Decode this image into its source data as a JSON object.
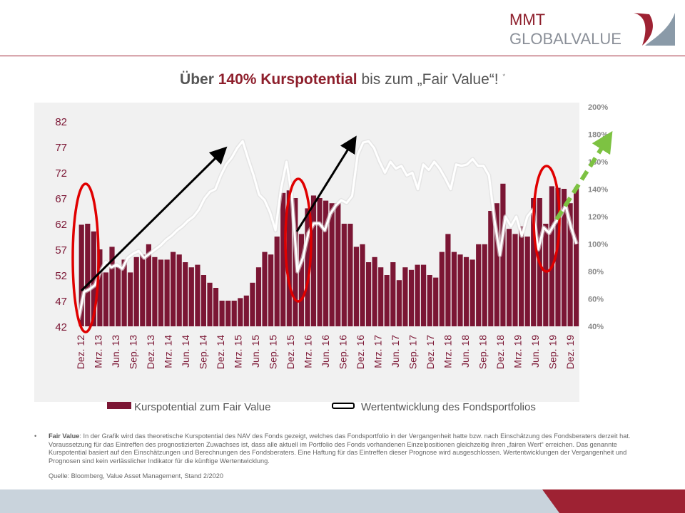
{
  "brand": {
    "line1": "MMT",
    "line2": "GLOBALVALUE"
  },
  "headline": {
    "part1": "Über ",
    "part2": "140% Kurspotential",
    "part3": " bis zum „Fair Value“!",
    "asterisk": "*"
  },
  "colors": {
    "bar": "#7b1634",
    "line": "#ffffff",
    "circle": "#e00000",
    "arrow": "#000000",
    "arrow_forecast": "#7dc242"
  },
  "chart_data": {
    "type": "bar",
    "left_axis": {
      "ticks": [
        "82",
        "77",
        "72",
        "67",
        "62",
        "57",
        "52",
        "47",
        "42"
      ],
      "min": 42,
      "max": 82
    },
    "right_axis": {
      "ticks": [
        "200%",
        "180%",
        "160%",
        "140%",
        "120%",
        "100%",
        "80%",
        "60%",
        "40%"
      ],
      "min": 40,
      "max": 200
    },
    "x_tick_labels": [
      "Dez. 12",
      "Mrz. 13",
      "Jun. 13",
      "Sep. 13",
      "Dez. 13",
      "Mrz. 14",
      "Jun. 14",
      "Sep. 14",
      "Dez. 14",
      "Mrz. 15",
      "Jun. 15",
      "Sep. 15",
      "Dez. 15",
      "Mrz. 16",
      "Jun. 16",
      "Sep. 16",
      "Dez. 16",
      "Mrz. 17",
      "Jun. 17",
      "Sep. 17",
      "Dez. 17",
      "Mrz. 18",
      "Jun. 18",
      "Sep. 18",
      "Dez. 18",
      "Mrz. 19",
      "Jun. 19",
      "Sep. 19",
      "Dez. 19"
    ],
    "series": [
      {
        "name": "Kurspotential zum Fair Value",
        "type": "bar",
        "axis": "left",
        "values": [
          61.8,
          62,
          60.5,
          57,
          52.5,
          57.5,
          53.5,
          55,
          52.5,
          55.5,
          56,
          58,
          55.5,
          55,
          55,
          56.5,
          56,
          54.5,
          53.5,
          54,
          52,
          50.5,
          49.5,
          47,
          47,
          47,
          47.5,
          48,
          50.5,
          53.5,
          56.5,
          56,
          59.5,
          68,
          68.5,
          67,
          60,
          65,
          67.5,
          67,
          66.5,
          66,
          66,
          62,
          62,
          57.5,
          58,
          54.5,
          55.5,
          53.5,
          52,
          54.5,
          51,
          53.5,
          53,
          54,
          54,
          52,
          51.5,
          56.5,
          60,
          56.5,
          56,
          55.5,
          55,
          58,
          58,
          64.5,
          66,
          69.8,
          61,
          60,
          61.5,
          59.5,
          67,
          67,
          62,
          69.3,
          69,
          68.8,
          66,
          69
        ]
      },
      {
        "name": "Wertentwicklung des Fondsportfolios",
        "type": "line",
        "axis": "right",
        "values": [
          45,
          65,
          67,
          70,
          80,
          87,
          83,
          85,
          82,
          90,
          93,
          95,
          90,
          93,
          96,
          99,
          103,
          106,
          110,
          113,
          117,
          120,
          125,
          133,
          138,
          140,
          150,
          158,
          163,
          170,
          175,
          162,
          150,
          136,
          132,
          123,
          110,
          140,
          160,
          135,
          80,
          90,
          108,
          115,
          115,
          110,
          122,
          128,
          132,
          130,
          135,
          165,
          174,
          175,
          170,
          160,
          152,
          160,
          155,
          157,
          150,
          152,
          140,
          158,
          154,
          160,
          155,
          148,
          140,
          158,
          157,
          158,
          162,
          157,
          157,
          150,
          118,
          92,
          120,
          113,
          120,
          106,
          120,
          125,
          96,
          112,
          108,
          115,
          120,
          128,
          112,
          100
        ]
      }
    ],
    "annotations": {
      "circles": 3,
      "arrows": 3,
      "forecast_arrow": "dashed green"
    }
  },
  "legend": {
    "bar_label": "Kurspotential zum Fair Value",
    "line_label": "Wertentwicklung des Fondsportfolios"
  },
  "footnote": {
    "bullet": "•",
    "label": "Fair Value",
    "text": ": In der Grafik wird das theoretische Kurspotential des NAV des Fonds gezeigt, welches das Fondsportfolio in der Vergangenheit hatte bzw. nach Einschätzung des Fondsberaters derzeit hat. Voraussetzung für das Eintreffen des prognostizierten Zuwachses ist, dass alle aktuell im Portfolio des Fonds vorhandenen Einzelpositionen gleichzeitig ihren „fairen Wert“ erreichen. Das genannte Kurspotential basiert auf den Einschätzungen und Berechnungen des Fondsberaters. Eine Haftung für das Eintreffen dieser Prognose wird ausgeschlossen. Wertentwicklungen der Vergangenheit und Prognosen sind kein verlässlicher Indikator für die künftige Wertentwicklung."
  },
  "source": "Quelle: Bloomberg, Value Asset Management, Stand 2/2020"
}
